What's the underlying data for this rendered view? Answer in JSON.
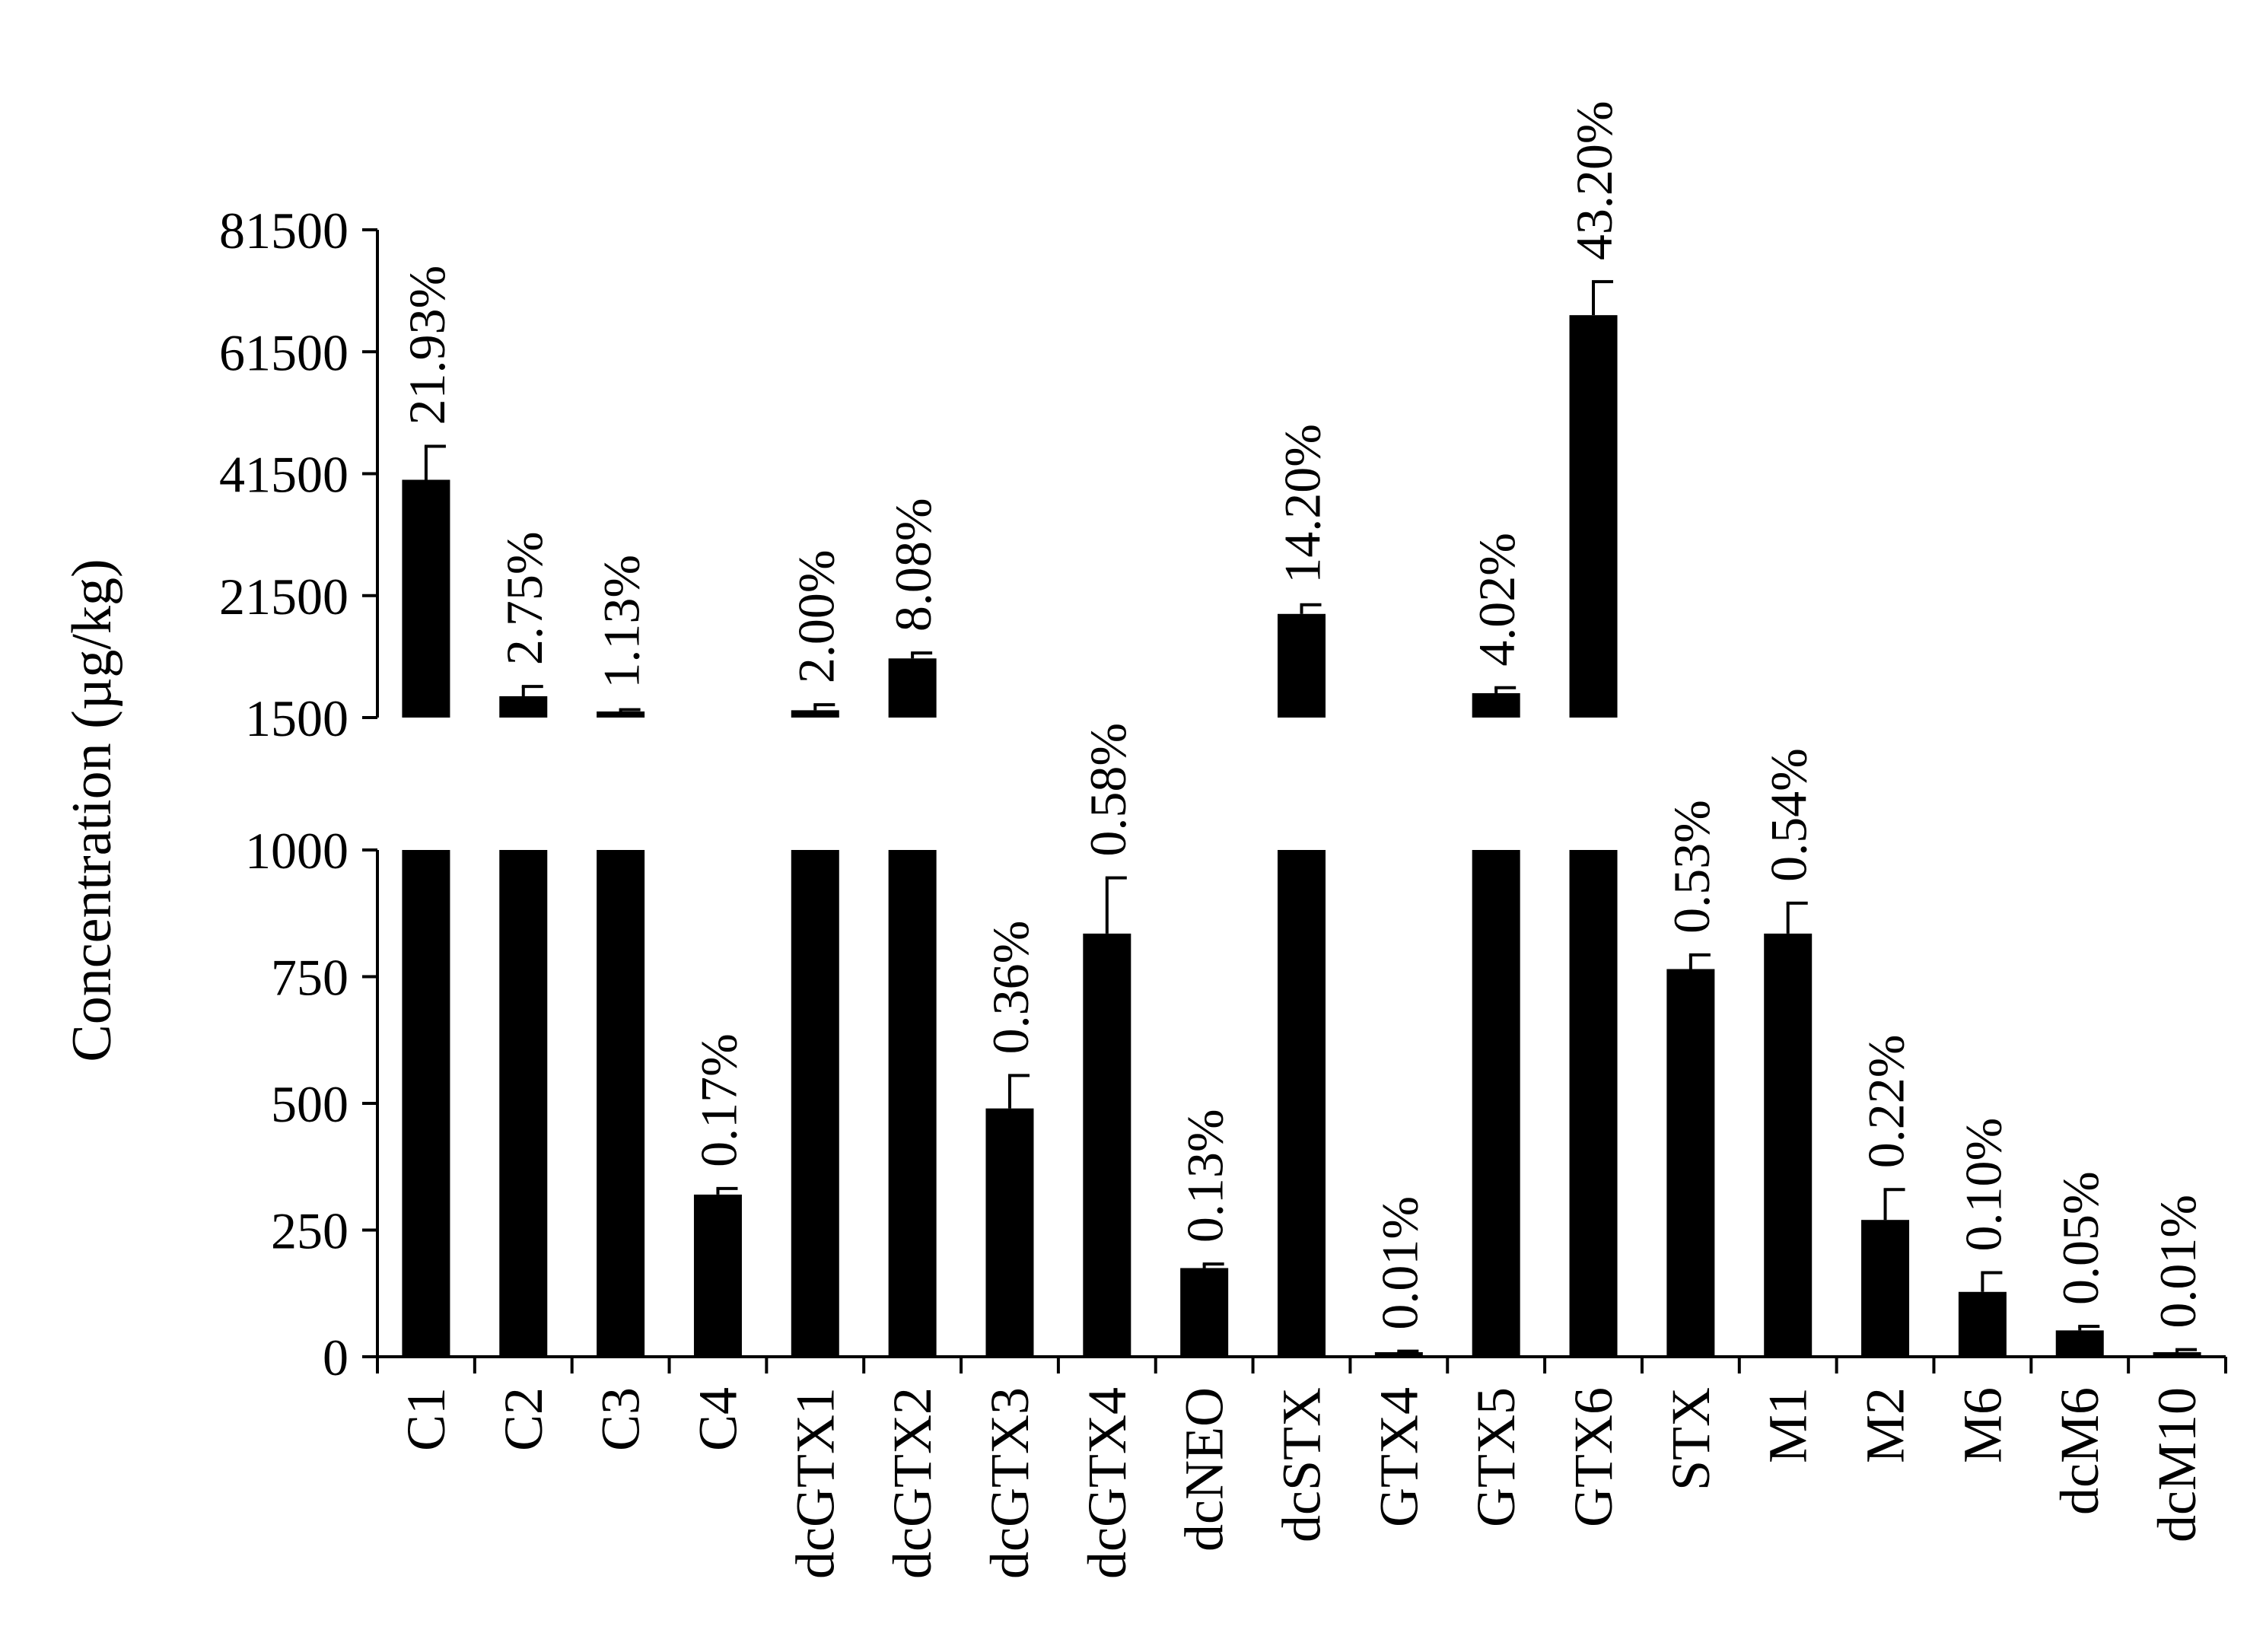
{
  "chart_data": {
    "type": "bar",
    "title": "",
    "xlabel": "",
    "ylabel": "Concentration (µg/kg)",
    "axis_break": {
      "lower_range": [
        0,
        1000
      ],
      "upper_range": [
        1500,
        81500
      ]
    },
    "lower_ticks": [
      "0",
      "250",
      "500",
      "750",
      "1000"
    ],
    "upper_ticks": [
      "1500",
      "21500",
      "41500",
      "61500",
      "81500"
    ],
    "categories": [
      "C1",
      "C2",
      "C3",
      "C4",
      "dcGTX1",
      "dcGTX2",
      "dcGTX3",
      "dcGTX4",
      "dcNEO",
      "dcSTX",
      "GTX4",
      "GTX5",
      "GTX6",
      "STX",
      "M1",
      "M2",
      "M6",
      "dcM6",
      "dcM10"
    ],
    "values": [
      40500,
      5000,
      2000,
      320,
      2700,
      11200,
      490,
      835,
      175,
      18500,
      8,
      5500,
      67500,
      765,
      835,
      270,
      128,
      52,
      8
    ],
    "errors": [
      5500,
      1600,
      800,
      12,
      900,
      900,
      65,
      110,
      8,
      1500,
      3,
      900,
      5500,
      28,
      60,
      60,
      38,
      8,
      6
    ],
    "percent_labels": [
      "21.93%",
      "2.75%",
      "1.13%",
      "0.17%",
      "2.00%",
      "8.08%",
      "0.36%",
      "0.58%",
      "0.13%",
      "14.20%",
      "0.01%",
      "4.02%",
      "43.20%",
      "0.53%",
      "0.54%",
      "0.22%",
      "0.10%",
      "0.05%",
      "0.01%"
    ],
    "bar_color": "#000000",
    "grid": false,
    "legend": "none"
  }
}
